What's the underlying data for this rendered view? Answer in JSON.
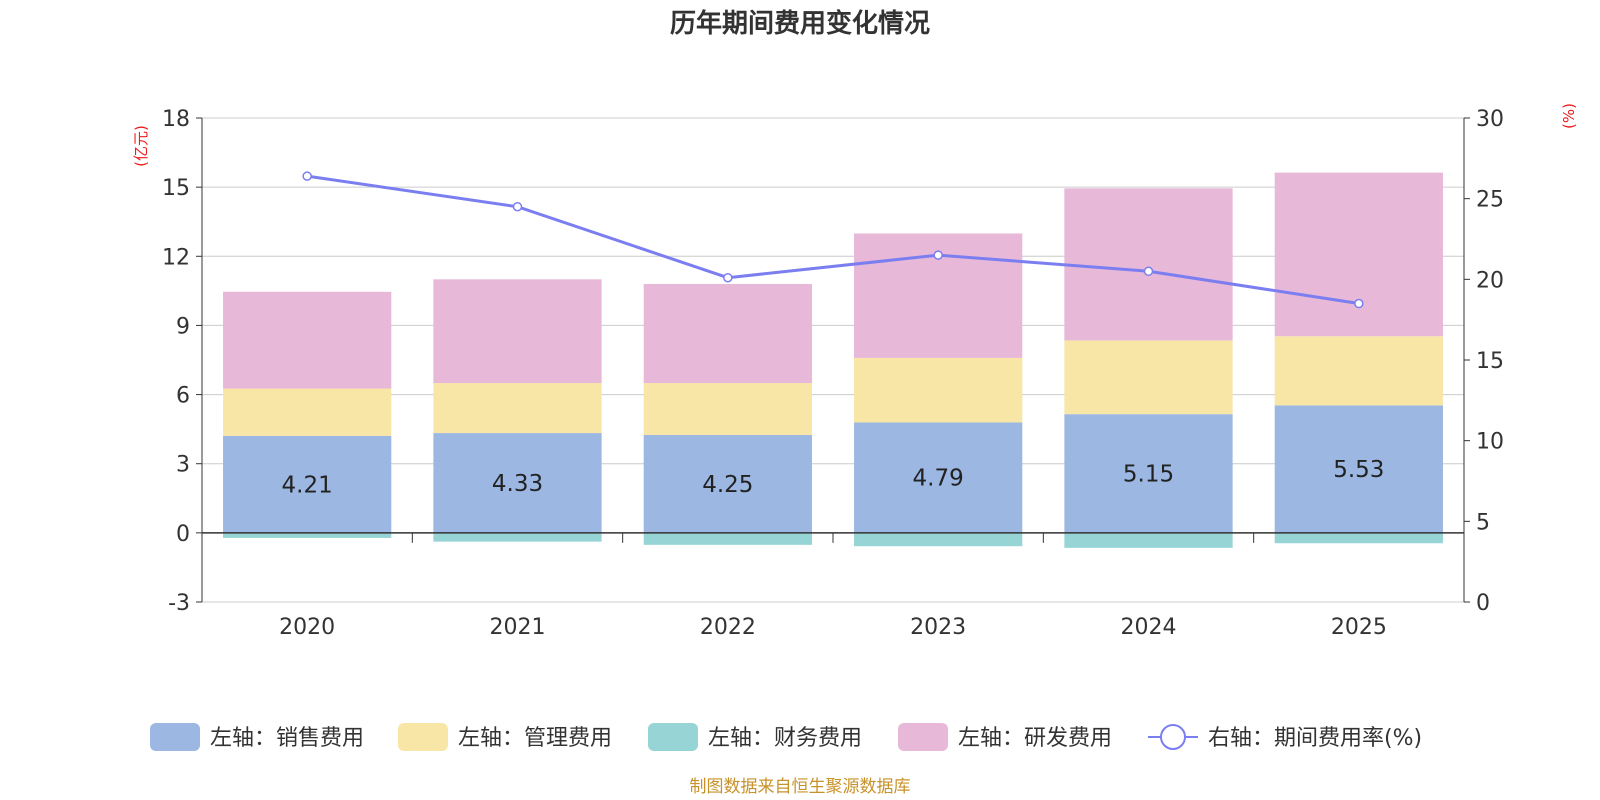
{
  "chart_data": {
    "type": "bar",
    "title": "历年期间费用变化情况",
    "categories": [
      "2020",
      "2021",
      "2022",
      "2023",
      "2024",
      "2025"
    ],
    "left_axis": {
      "unit_label": "(亿元)",
      "min": -3,
      "max": 18,
      "ticks": [
        -3,
        0,
        3,
        6,
        9,
        12,
        15,
        18
      ]
    },
    "right_axis": {
      "unit_label": "(%)",
      "min": 0,
      "max": 30,
      "ticks": [
        0,
        5,
        10,
        15,
        20,
        25,
        30
      ]
    },
    "series": [
      {
        "name": "左轴：销售费用",
        "kind": "bar",
        "axis": "left",
        "color": "#9bb7e2",
        "values": [
          4.21,
          4.33,
          4.25,
          4.79,
          5.15,
          5.53
        ],
        "show_labels": true,
        "labels": [
          "4.21",
          "4.33",
          "4.25",
          "4.79",
          "5.15",
          "5.53"
        ]
      },
      {
        "name": "左轴：管理费用",
        "kind": "bar",
        "axis": "left",
        "color": "#f8e6a7",
        "values": [
          2.05,
          2.17,
          2.25,
          2.8,
          3.2,
          3.0
        ]
      },
      {
        "name": "左轴：财务费用",
        "kind": "bar",
        "axis": "left",
        "color": "#96d4d5",
        "values": [
          -0.22,
          -0.38,
          -0.52,
          -0.58,
          -0.65,
          -0.45
        ]
      },
      {
        "name": "左轴：研发费用",
        "kind": "bar",
        "axis": "left",
        "color": "#e8b8d8",
        "values": [
          4.2,
          4.5,
          4.3,
          5.4,
          6.6,
          7.1
        ]
      },
      {
        "name": "右轴：期间费用率(%)",
        "kind": "line",
        "axis": "right",
        "color": "#7b7ef0",
        "values": [
          26.4,
          24.5,
          20.1,
          21.5,
          20.5,
          18.5
        ]
      }
    ],
    "source_note": "制图数据来自恒生聚源数据库"
  }
}
